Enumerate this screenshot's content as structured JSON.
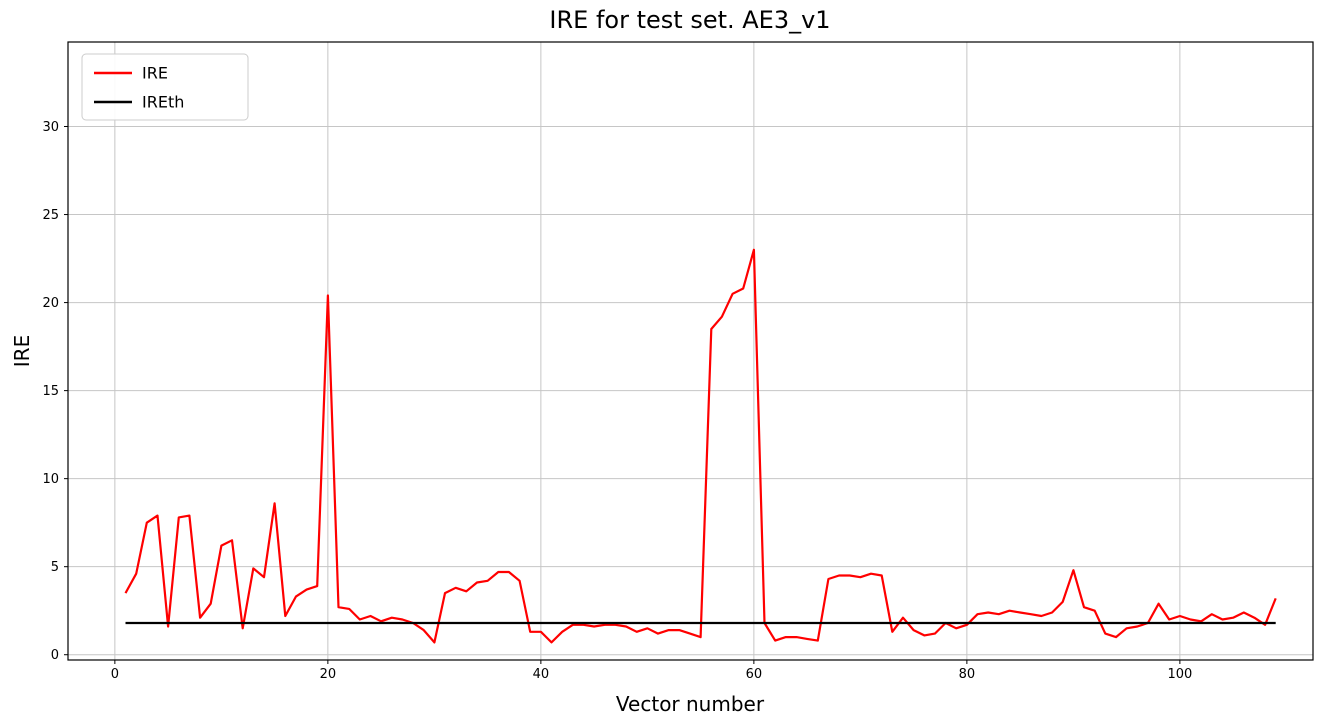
{
  "chart_data": {
    "type": "line",
    "title": "IRE for test set. AE3_v1",
    "xlabel": "Vector number",
    "ylabel": "IRE",
    "xlim": [
      -4.4,
      112.5
    ],
    "ylim": [
      -0.3,
      34.8
    ],
    "xticks": [
      0,
      20,
      40,
      60,
      80,
      100
    ],
    "yticks": [
      0,
      5,
      10,
      15,
      20,
      25,
      30
    ],
    "grid": true,
    "grid_color": "#c6c6c6",
    "legend_position": "upper-left",
    "x_start": 1,
    "x_step": 1,
    "series": [
      {
        "name": "IRE",
        "color": "#ff0000",
        "values": [
          3.5,
          4.6,
          7.5,
          7.9,
          1.6,
          7.8,
          7.9,
          2.1,
          2.9,
          6.2,
          6.5,
          1.5,
          4.9,
          4.4,
          8.6,
          2.2,
          3.3,
          3.7,
          3.9,
          20.4,
          2.7,
          2.6,
          2.0,
          2.2,
          1.9,
          2.1,
          2.0,
          1.8,
          1.4,
          0.7,
          3.5,
          3.8,
          3.6,
          4.1,
          4.2,
          4.7,
          4.7,
          4.2,
          1.3,
          1.3,
          0.7,
          1.3,
          1.7,
          1.7,
          1.6,
          1.7,
          1.7,
          1.6,
          1.3,
          1.5,
          1.2,
          1.4,
          1.4,
          1.2,
          1.0,
          18.5,
          19.2,
          20.5,
          20.8,
          23.0,
          1.8,
          0.8,
          1.0,
          1.0,
          0.9,
          0.8,
          4.3,
          4.5,
          4.5,
          4.4,
          4.6,
          4.5,
          1.3,
          2.1,
          1.4,
          1.1,
          1.2,
          1.8,
          1.5,
          1.7,
          2.3,
          2.4,
          2.3,
          2.5,
          2.4,
          2.3,
          2.2,
          2.4,
          3.0,
          4.8,
          2.7,
          2.5,
          1.2,
          1.0,
          1.5,
          1.6,
          1.8,
          2.9,
          2.0,
          2.2,
          2.0,
          1.9,
          2.3,
          2.0,
          2.1,
          2.4,
          2.1,
          1.7,
          3.2
        ]
      },
      {
        "name": "IREth",
        "color": "#000000",
        "constant": 1.8
      }
    ]
  }
}
